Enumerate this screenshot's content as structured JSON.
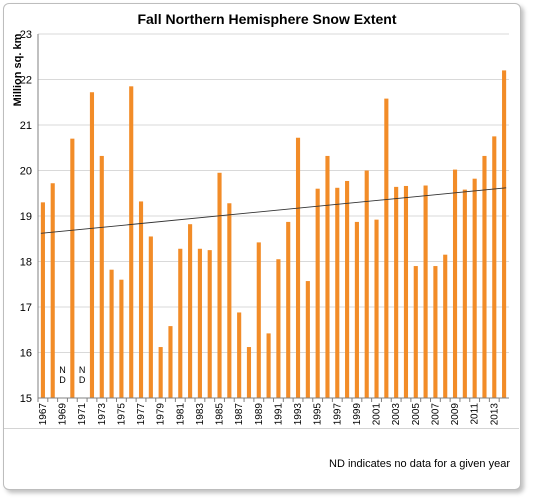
{
  "chart_data": {
    "type": "bar",
    "title": "Fall Northern Hemisphere Snow Extent",
    "ylabel": "Million sq. km",
    "xlabel": "",
    "ylim": [
      15,
      23
    ],
    "yticks": [
      15,
      16,
      17,
      18,
      19,
      20,
      21,
      22,
      23
    ],
    "grid": true,
    "bar_color": "#f28c28",
    "trendline_color": "#333333",
    "trendline": [
      18.62,
      19.62
    ],
    "categories": [
      "1967",
      "1968",
      "1969",
      "1970",
      "1971",
      "1972",
      "1973",
      "1974",
      "1975",
      "1976",
      "1977",
      "1978",
      "1979",
      "1980",
      "1981",
      "1982",
      "1983",
      "1984",
      "1985",
      "1986",
      "1987",
      "1988",
      "1989",
      "1990",
      "1991",
      "1992",
      "1993",
      "1994",
      "1995",
      "1996",
      "1997",
      "1998",
      "1999",
      "2000",
      "2001",
      "2002",
      "2003",
      "2004",
      "2005",
      "2006",
      "2007",
      "2008",
      "2009",
      "2010",
      "2011",
      "2012",
      "2013",
      "2014"
    ],
    "xtick_labels": [
      "1967",
      "1969",
      "1971",
      "1973",
      "1975",
      "1977",
      "1979",
      "1981",
      "1983",
      "1985",
      "1987",
      "1989",
      "1991",
      "1993",
      "1995",
      "1997",
      "1999",
      "2001",
      "2003",
      "2005",
      "2007",
      "2009",
      "2011",
      "2013"
    ],
    "values": [
      19.3,
      19.72,
      null,
      20.7,
      null,
      21.72,
      20.32,
      17.82,
      17.6,
      21.85,
      19.32,
      18.55,
      16.12,
      16.58,
      18.28,
      18.82,
      18.28,
      18.25,
      19.95,
      19.28,
      16.88,
      16.12,
      18.42,
      16.42,
      18.05,
      18.87,
      20.72,
      17.57,
      19.6,
      20.32,
      19.62,
      19.77,
      18.87,
      20.0,
      18.92,
      21.58,
      19.64,
      19.66,
      17.9,
      19.67,
      17.9,
      18.15,
      20.02,
      19.58,
      19.82,
      20.32,
      20.75,
      22.2
    ],
    "annotations": [
      {
        "category": "1969",
        "text": [
          "N",
          "D"
        ]
      },
      {
        "category": "1971",
        "text": [
          "N",
          "D"
        ]
      }
    ],
    "footnote": "ND indicates no data for a given year"
  }
}
